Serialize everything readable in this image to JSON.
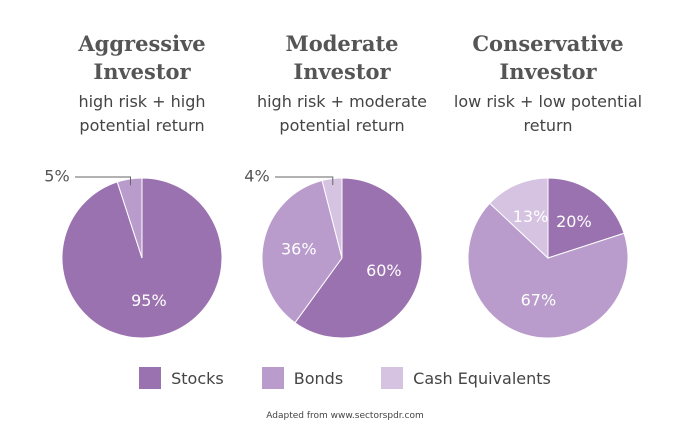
{
  "chart_data": [
    {
      "type": "pie",
      "title": "Aggressive Investor",
      "subtitle": "high risk + high potential return",
      "values": [
        95,
        5,
        null
      ],
      "value_labels": [
        "95%",
        "5%",
        null
      ]
    },
    {
      "type": "pie",
      "title": "Moderate Investor",
      "subtitle": "high risk + moderate potential return",
      "values": [
        60,
        36,
        4
      ],
      "value_labels": [
        "60%",
        "36%",
        "4%"
      ]
    },
    {
      "type": "pie",
      "title": "Conservative Investor",
      "subtitle": "low risk + low potential return",
      "values": [
        20,
        67,
        13
      ],
      "value_labels": [
        "20%",
        "67%",
        "13%"
      ]
    }
  ],
  "legend": {
    "categories": [
      "Stocks",
      "Bonds",
      "Cash Equivalents"
    ],
    "colors": [
      "#9b72b0",
      "#b99ccb",
      "#d5c3e1"
    ]
  },
  "source": "Adapted from www.sectorspdr.com"
}
